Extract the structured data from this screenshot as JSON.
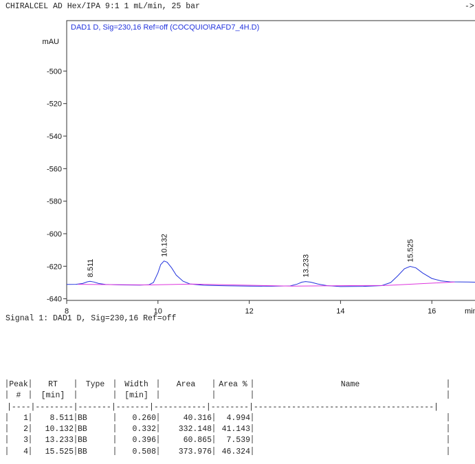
{
  "header": {
    "title": "CHIRALCEL AD  Hex/IPA 9:1 1 mL/min,  25 bar",
    "arrow": "->"
  },
  "chart_data": {
    "type": "line",
    "title": "DAD1 D, Sig=230,16 Ref=off (COCQUIO\\RAFD7_4H.D)",
    "ylabel": "mAU",
    "xlabel": "min",
    "xlim": [
      8,
      17
    ],
    "ylim": [
      -641,
      -469
    ],
    "xticks": [
      8,
      10,
      12,
      14,
      16
    ],
    "yticks": [
      -500,
      -520,
      -540,
      -560,
      -580,
      -600,
      -620,
      -640
    ],
    "series": [
      {
        "color": "#2233dd",
        "x": [
          8.0,
          8.2,
          8.35,
          8.45,
          8.511,
          8.6,
          8.7,
          8.85,
          9.2,
          9.6,
          9.8,
          9.9,
          10.0,
          10.06,
          10.132,
          10.2,
          10.3,
          10.4,
          10.55,
          10.7,
          11.0,
          11.5,
          12.0,
          12.5,
          12.9,
          13.05,
          13.15,
          13.233,
          13.35,
          13.5,
          13.7,
          14.0,
          14.5,
          14.9,
          15.1,
          15.25,
          15.4,
          15.525,
          15.65,
          15.8,
          16.0,
          16.2,
          16.4,
          16.8,
          17.0
        ],
        "values": [
          -631.2,
          -631.1,
          -630.6,
          -629.6,
          -629.3,
          -629.7,
          -630.6,
          -631.2,
          -631.5,
          -631.6,
          -631.4,
          -630.0,
          -624,
          -619,
          -616.8,
          -617.5,
          -621,
          -625.5,
          -629.2,
          -630.9,
          -631.7,
          -632.0,
          -632.2,
          -632.3,
          -632.1,
          -631.0,
          -629.8,
          -629.4,
          -629.8,
          -630.9,
          -631.9,
          -632.5,
          -632.4,
          -631.9,
          -630.0,
          -626,
          -621.5,
          -620.1,
          -621,
          -624.2,
          -627.5,
          -629.0,
          -629.6,
          -629.7,
          -629.8
        ]
      },
      {
        "color": "#dd33dd",
        "x": [
          8.25,
          8.9,
          9.8,
          10.75,
          12.95,
          13.75,
          15.0,
          16.5
        ],
        "values": [
          -631.1,
          -631.3,
          -631.5,
          -631.0,
          -632.2,
          -632.0,
          -631.8,
          -629.7
        ]
      }
    ],
    "annotations": [
      {
        "x": 8.511,
        "label": "8.511"
      },
      {
        "x": 10.132,
        "label": "10.132"
      },
      {
        "x": 13.233,
        "label": "13.233"
      },
      {
        "x": 15.525,
        "label": "15.525"
      }
    ]
  },
  "signal": "Signal  1: DAD1 D, Sig=230,16 Ref=off",
  "table": {
    "header": [
      "Peak",
      "RT",
      "Type",
      "Width",
      "Area",
      "Area %",
      "Name"
    ],
    "units": {
      "peak": "#",
      "rt": "[min]",
      "width": "[min]"
    },
    "separator": "|----|--------|-------|-------|-----------|--------|--------------------------------------|",
    "rows": [
      [
        "1",
        "8.511",
        "BB",
        "0.260",
        "40.316",
        "4.994"
      ],
      [
        "2",
        "10.132",
        "BB",
        "0.332",
        "332.148",
        "41.143"
      ],
      [
        "3",
        "13.233",
        "BB",
        "0.396",
        "60.865",
        "7.539"
      ],
      [
        "4",
        "15.525",
        "BB",
        "0.508",
        "373.976",
        "46.324"
      ]
    ]
  }
}
